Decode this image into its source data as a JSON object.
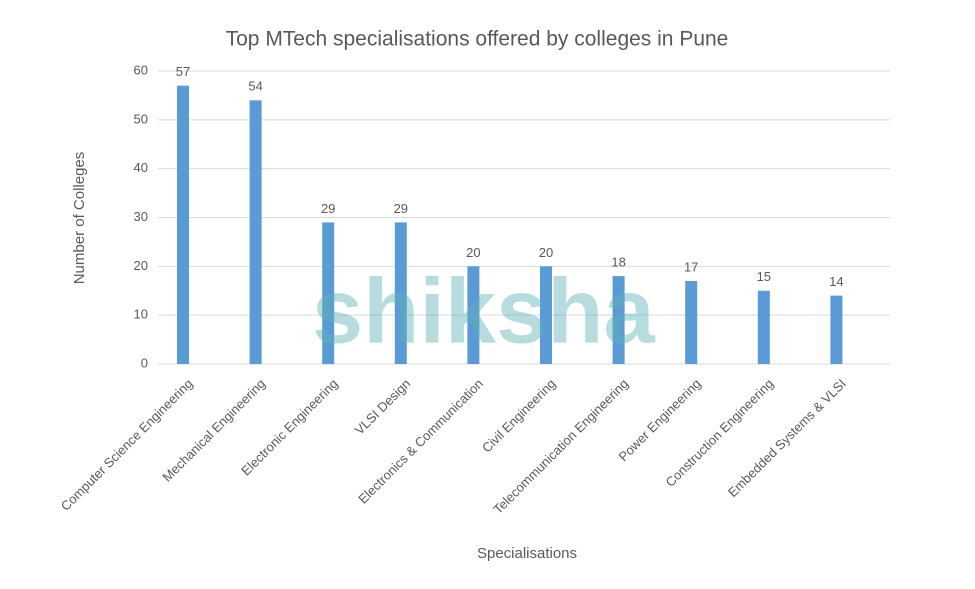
{
  "chart_data": {
    "type": "bar",
    "title": "Top MTech specialisations offered by colleges in Pune",
    "x_label": "Specialisations",
    "y_label": "Number of Colleges",
    "watermark": "shiksha",
    "categories": [
      "Computer Science Engineering",
      "Mechanical Engineering",
      "Electronic Engineering",
      "VLSI Design",
      "Electronics & Communication",
      "Civil Engineering",
      "Telecommunication Engineering",
      "Power Engineering",
      "Construction Engineering",
      "Embedded Systems & VLSI"
    ],
    "values": [
      57,
      54,
      29,
      29,
      20,
      20,
      18,
      17,
      15,
      14
    ],
    "color": "#5b9bd5",
    "ylim": [
      0,
      60
    ],
    "yticks": [
      0,
      10,
      20,
      30,
      40,
      50,
      60
    ],
    "grid": true
  }
}
